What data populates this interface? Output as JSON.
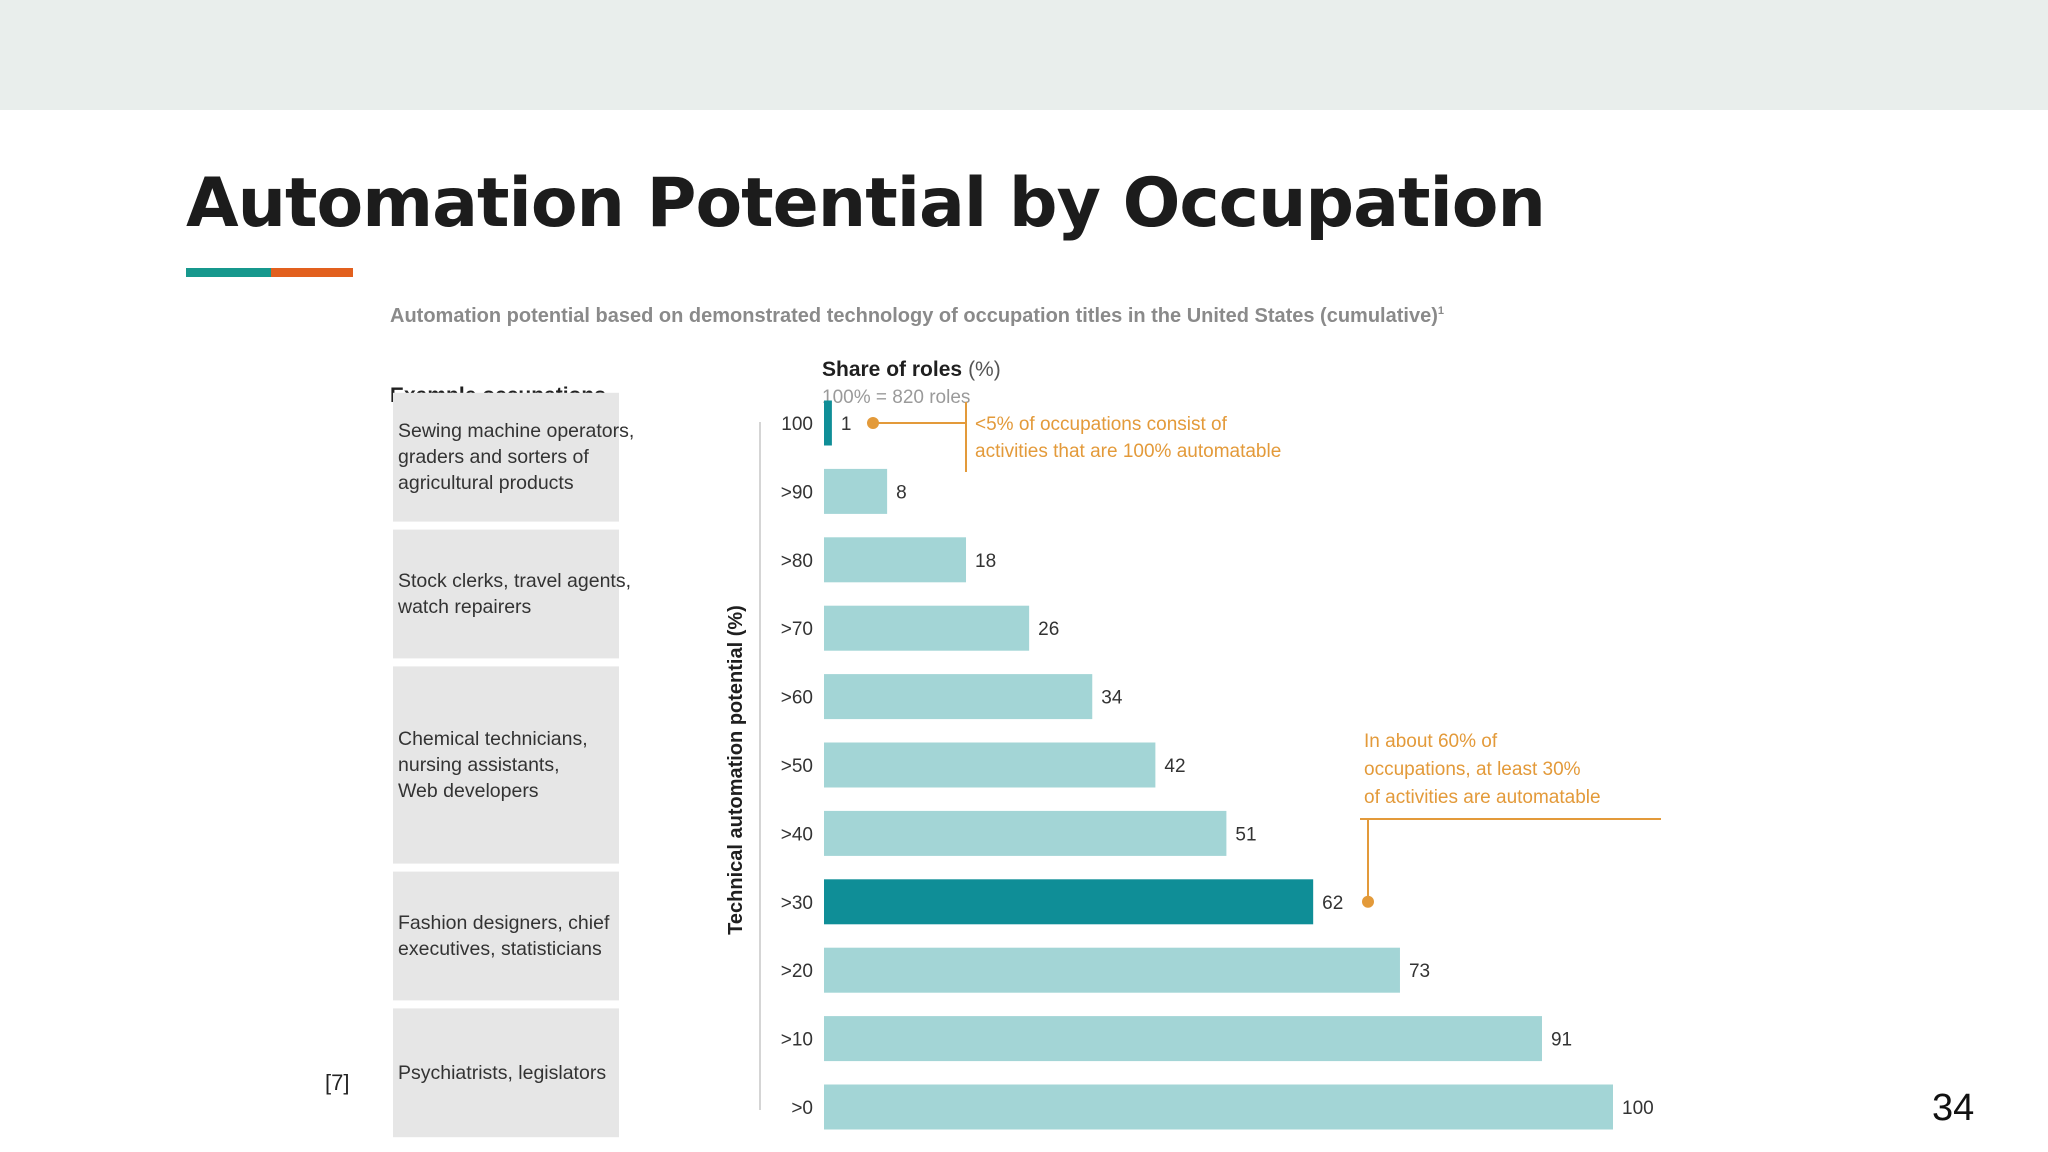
{
  "slide": {
    "title": "Automation Potential by Occupation",
    "reference": "[7]",
    "page_number": "34"
  },
  "colors": {
    "band": "#e9eeec",
    "teal_accent": "#17988d",
    "orange_accent": "#e2601e",
    "bar": "#a3d5d6",
    "bar_dark": "#0f8e97",
    "annotation": "#e39a3a",
    "occupation_box": "#e6e6e6"
  },
  "chart_data": {
    "type": "bar",
    "orientation": "horizontal",
    "title": "Automation potential based on demonstrated technology of occupation titles in the United States (cumulative)",
    "title_footnote": "1",
    "xlabel": "Share of roles",
    "xlabel_unit": "(%)",
    "xlabel_note": "100% = 820 roles",
    "ylabel": "Technical automation potential (%)",
    "xlim": [
      0,
      100
    ],
    "grid": false,
    "categories": [
      "100",
      ">90",
      ">80",
      ">70",
      ">60",
      ">50",
      ">40",
      ">30",
      ">20",
      ">10",
      ">0"
    ],
    "values": [
      1,
      8,
      18,
      26,
      34,
      42,
      51,
      62,
      73,
      91,
      100
    ],
    "highlighted_categories": [
      "100",
      ">30"
    ],
    "occupations_header": "Example occupations",
    "occupation_groups": [
      {
        "label": "Sewing machine operators, graders and sorters of agricultural products",
        "lines": [
          "Sewing machine operators,",
          "graders and sorters of",
          "agricultural products"
        ],
        "from": 0,
        "to": 1
      },
      {
        "label": "Stock clerks, travel agents, watch repairers",
        "lines": [
          "Stock clerks, travel agents,",
          "watch repairers"
        ],
        "from": 2,
        "to": 3
      },
      {
        "label": "Chemical technicians, nursing assistants, Web developers",
        "lines": [
          "Chemical technicians,",
          "nursing assistants,",
          "Web developers"
        ],
        "from": 4,
        "to": 6
      },
      {
        "label": "Fashion designers, chief executives, statisticians",
        "lines": [
          "Fashion designers, chief",
          "executives, statisticians"
        ],
        "from": 7,
        "to": 8
      },
      {
        "label": "Psychiatrists, legislators",
        "lines": [
          "Psychiatrists, legislators"
        ],
        "from": 9,
        "to": 10
      }
    ],
    "annotations": [
      {
        "category": "100",
        "text": "<5% of occupations consist of activities that are 100% automatable",
        "lines": [
          "<5% of occupations consist of",
          "activities that are 100% automatable"
        ]
      },
      {
        "category": ">30",
        "text": "In about 60% of occupations, at least 30% of activities are automatable",
        "lines": [
          "In about 60% of",
          "occupations, at least 30%",
          "of activities are automatable"
        ]
      }
    ]
  }
}
